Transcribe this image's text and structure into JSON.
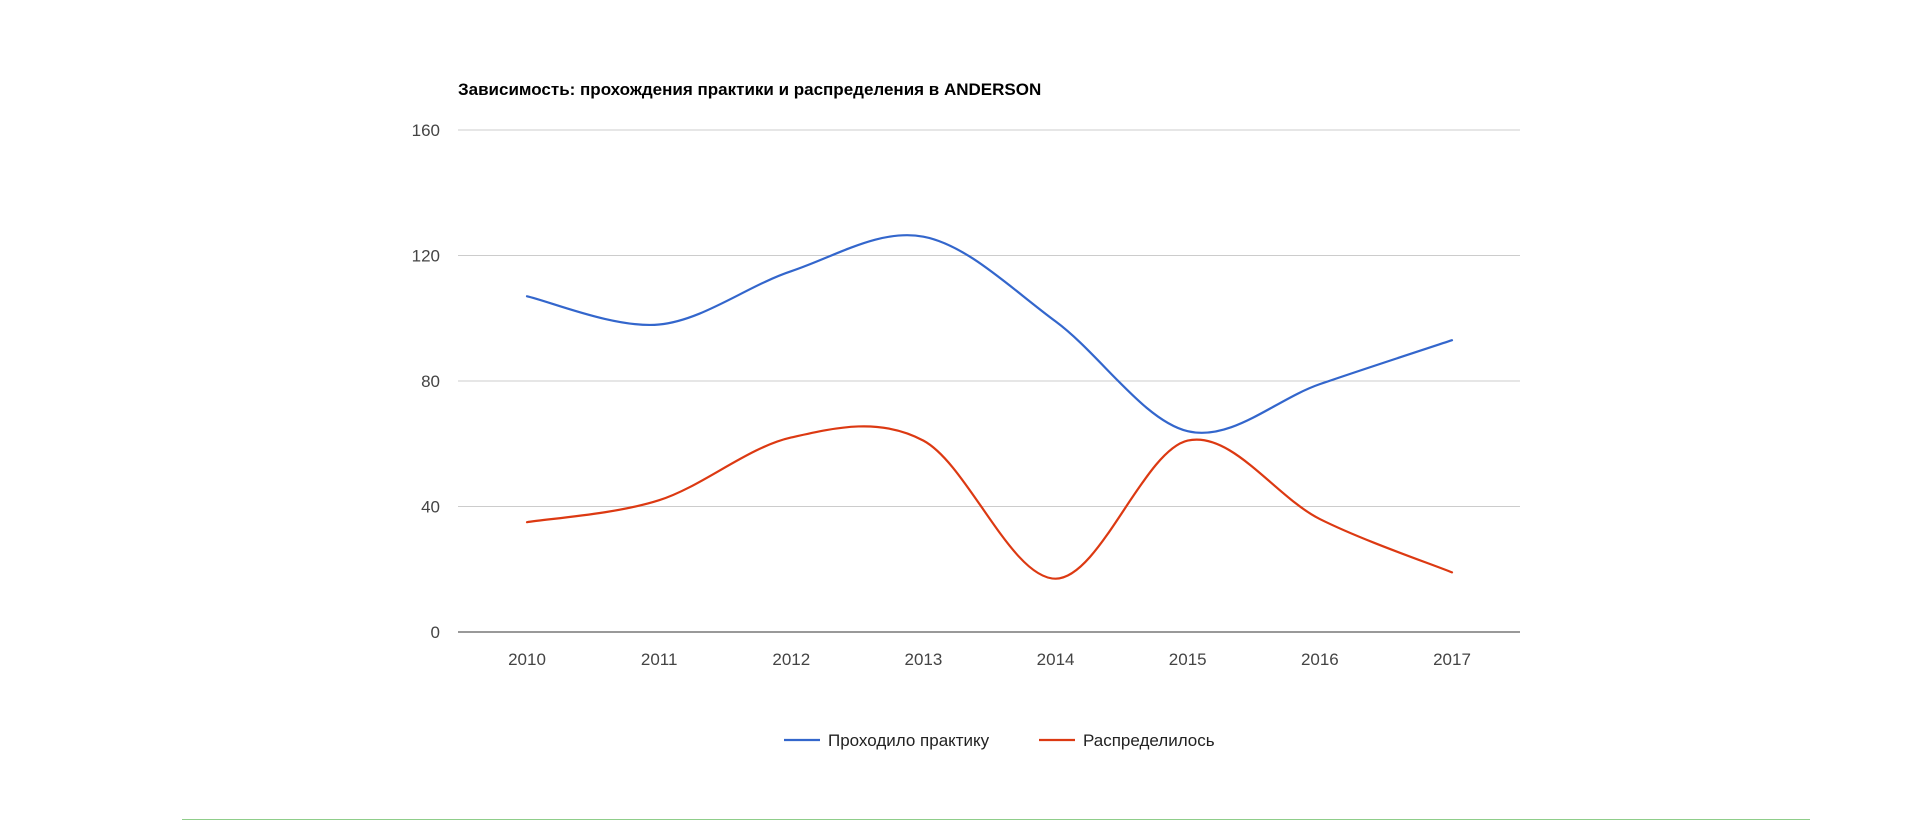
{
  "chart_data": {
    "type": "line",
    "title": "Зависимость: прохождения практики и распределения в ANDERSON",
    "xlabel": "",
    "ylabel": "",
    "categories": [
      "2010",
      "2011",
      "2012",
      "2013",
      "2014",
      "2015",
      "2016",
      "2017"
    ],
    "ylim": [
      0,
      160
    ],
    "yticks": [
      0,
      40,
      80,
      120,
      160
    ],
    "grid": true,
    "smooth": true,
    "legend_position": "bottom",
    "series": [
      {
        "name": "Проходило практику",
        "color": "#3366cc",
        "values": [
          107,
          98,
          115,
          126,
          99,
          64,
          79,
          93
        ]
      },
      {
        "name": "Распределилось",
        "color": "#dc3912",
        "values": [
          35,
          42,
          62,
          61,
          17,
          61,
          36,
          19
        ]
      }
    ]
  }
}
